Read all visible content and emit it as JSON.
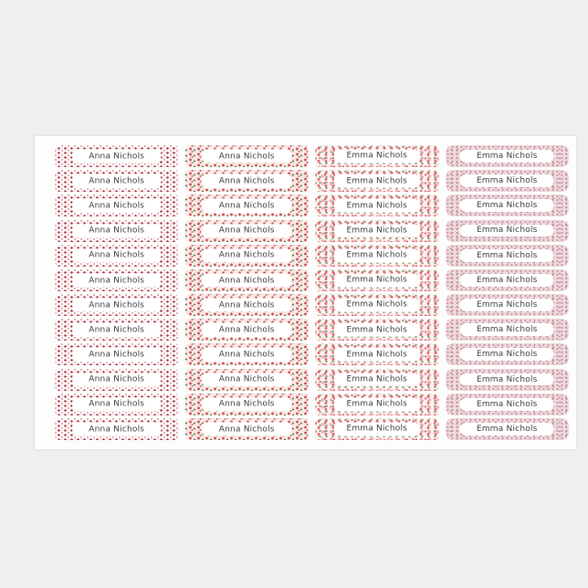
{
  "colors": {
    "page_background": "#efefef",
    "sheet_background": "#fdfdfd",
    "label_text": "#3b3b3b",
    "pattern_red": "#b03a4a",
    "pattern_pink": "#f2aeb8",
    "pattern_green": "#4e7a45",
    "column4_base_pink": "#eed9dc"
  },
  "sheet": {
    "rows_per_column": 12,
    "columns": [
      {
        "id": "column-1",
        "name": "Anna Nichols",
        "pattern": "red-ponies-on-white"
      },
      {
        "id": "column-2",
        "name": "Anna Nichols",
        "pattern": "red-ponies-green-dots-on-pink"
      },
      {
        "id": "column-3",
        "name": "Emma Nichols",
        "pattern": "pink-red-green-floral"
      },
      {
        "id": "column-4",
        "name": "Emma Nichols",
        "pattern": "fine-pink-speckles"
      }
    ]
  }
}
